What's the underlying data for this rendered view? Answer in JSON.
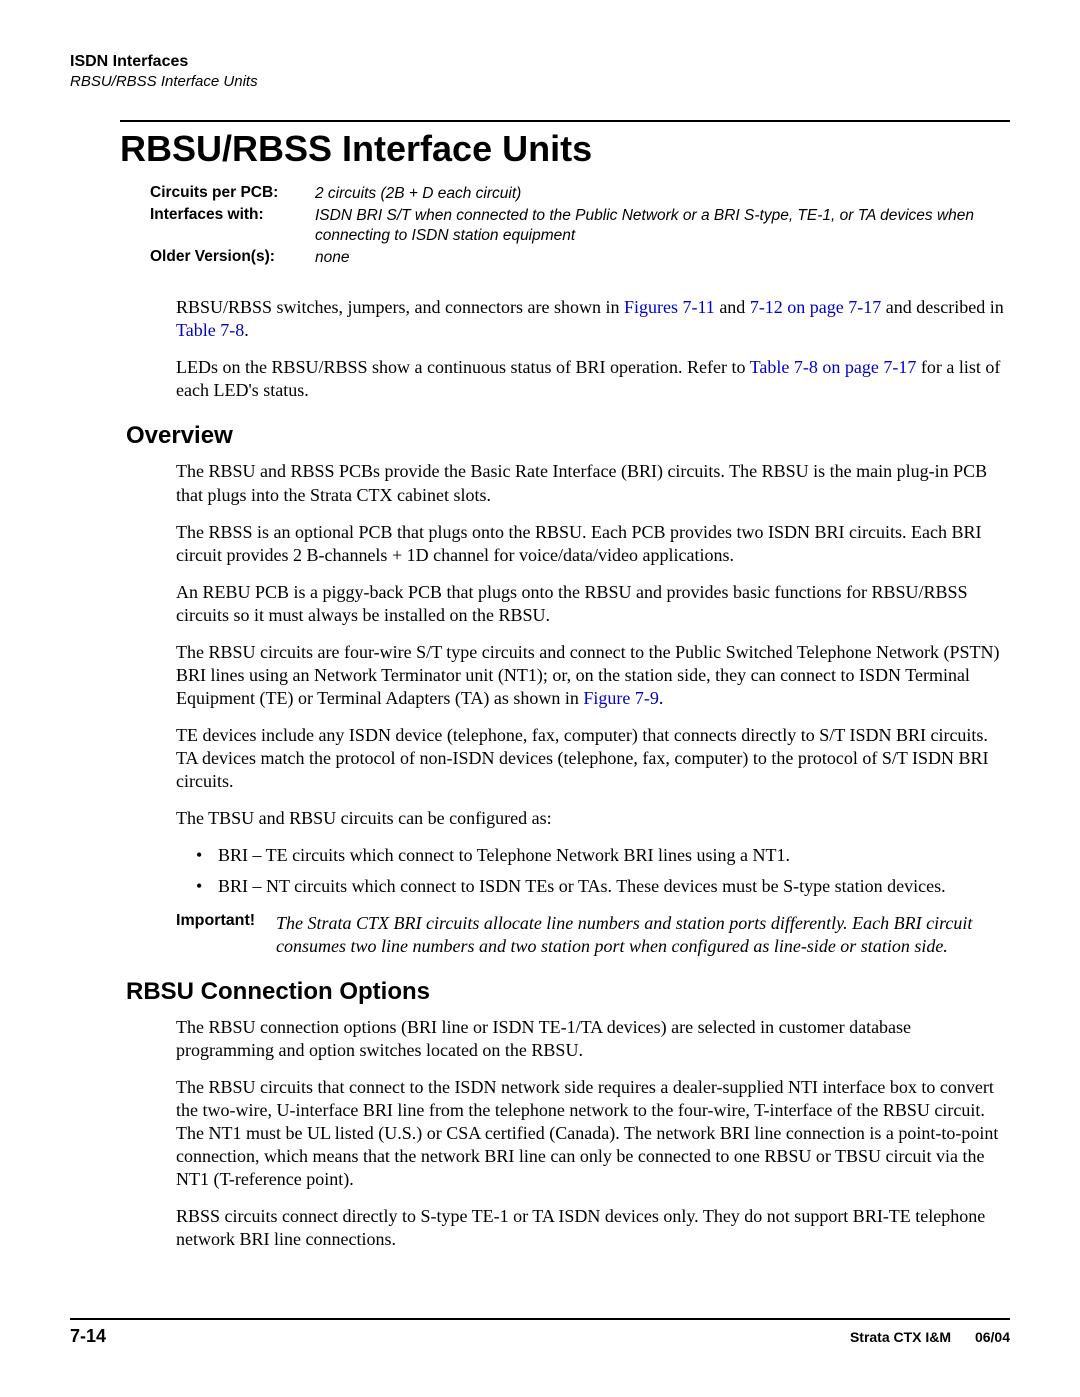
{
  "header": {
    "chapter": "ISDN Interfaces",
    "section": "RBSU/RBSS Interface Units"
  },
  "title": "RBSU/RBSS Interface Units",
  "specs": [
    {
      "label": "Circuits per PCB:",
      "value": "2 circuits (2B + D each circuit)"
    },
    {
      "label": "Interfaces with:",
      "value": "ISDN BRI S/T when connected to the Public Network or a BRI S-type, TE-1, or TA devices when connecting to ISDN station equipment"
    },
    {
      "label": "Older Version(s):",
      "value": "none"
    }
  ],
  "intro": {
    "p1_a": "RBSU/RBSS switches, jumpers, and connectors are shown in ",
    "p1_link1": "Figures 7-11",
    "p1_b": " and ",
    "p1_link2": "7-12 on page 7-17",
    "p1_c": " and described in ",
    "p1_link3": "Table 7-8",
    "p1_d": ".",
    "p2_a": "LEDs on the RBSU/RBSS show a continuous status of BRI operation. Refer to ",
    "p2_link1": "Table 7-8 on page 7-17",
    "p2_b": " for a list of each LED's status."
  },
  "overview": {
    "heading": "Overview",
    "p1": "The RBSU and RBSS PCBs provide the Basic Rate Interface (BRI) circuits. The RBSU is the main plug-in PCB that plugs into the Strata CTX cabinet slots.",
    "p2": "The RBSS is an optional PCB that plugs onto the RBSU. Each PCB provides two ISDN BRI circuits. Each BRI circuit provides 2 B-channels + 1D channel for voice/data/video applications.",
    "p3": "An REBU PCB is a piggy-back PCB that plugs onto the RBSU and provides basic functions for RBSU/RBSS circuits so it must always be installed on the RBSU.",
    "p4_a": "The RBSU circuits are four-wire S/T type circuits and connect to the Public Switched Telephone Network (PSTN) BRI lines using an Network Terminator unit (NT1); or, on the station side, they can connect to ISDN Terminal Equipment (TE) or Terminal Adapters (TA) as shown in ",
    "p4_link": "Figure 7-9",
    "p4_b": ".",
    "p5": "TE devices include any ISDN device (telephone, fax, computer) that connects directly to S/T ISDN BRI circuits. TA devices match the protocol of non-ISDN devices (telephone, fax, computer) to the protocol of S/T ISDN BRI circuits.",
    "p6": "The TBSU and RBSU circuits can be configured as:",
    "bullets": [
      "BRI – TE circuits which connect to Telephone Network BRI lines using a NT1.",
      "BRI – NT circuits which connect to ISDN TEs or TAs. These devices must be S-type station devices."
    ],
    "important_label": "Important!",
    "important_text": "The Strata CTX BRI circuits allocate line numbers and station ports differently. Each BRI circuit consumes two line numbers and two station port when configured as line-side or station side."
  },
  "connection": {
    "heading": "RBSU Connection Options",
    "p1": "The RBSU connection options (BRI line or ISDN TE-1/TA devices) are selected in customer database programming and option switches located on the RBSU.",
    "p2": "The RBSU circuits that connect to the ISDN network side requires a dealer-supplied NTI interface box to convert the two-wire, U-interface BRI line from the telephone network to the four-wire, T-interface of the RBSU circuit. The NT1 must be UL listed (U.S.) or CSA certified (Canada). The network BRI line connection is a point-to-point connection, which means that the network BRI line can only be connected to one RBSU or TBSU circuit via the NT1 (T-reference point).",
    "p3": "RBSS circuits connect directly to S-type TE-1 or TA ISDN devices only. They do not support BRI-TE telephone network BRI line connections."
  },
  "footer": {
    "page": "7-14",
    "doc": "Strata CTX I&M",
    "date": "06/04"
  },
  "colors": {
    "text": "#000000",
    "link": "#0000cc",
    "background": "#ffffff",
    "rule": "#000000"
  }
}
